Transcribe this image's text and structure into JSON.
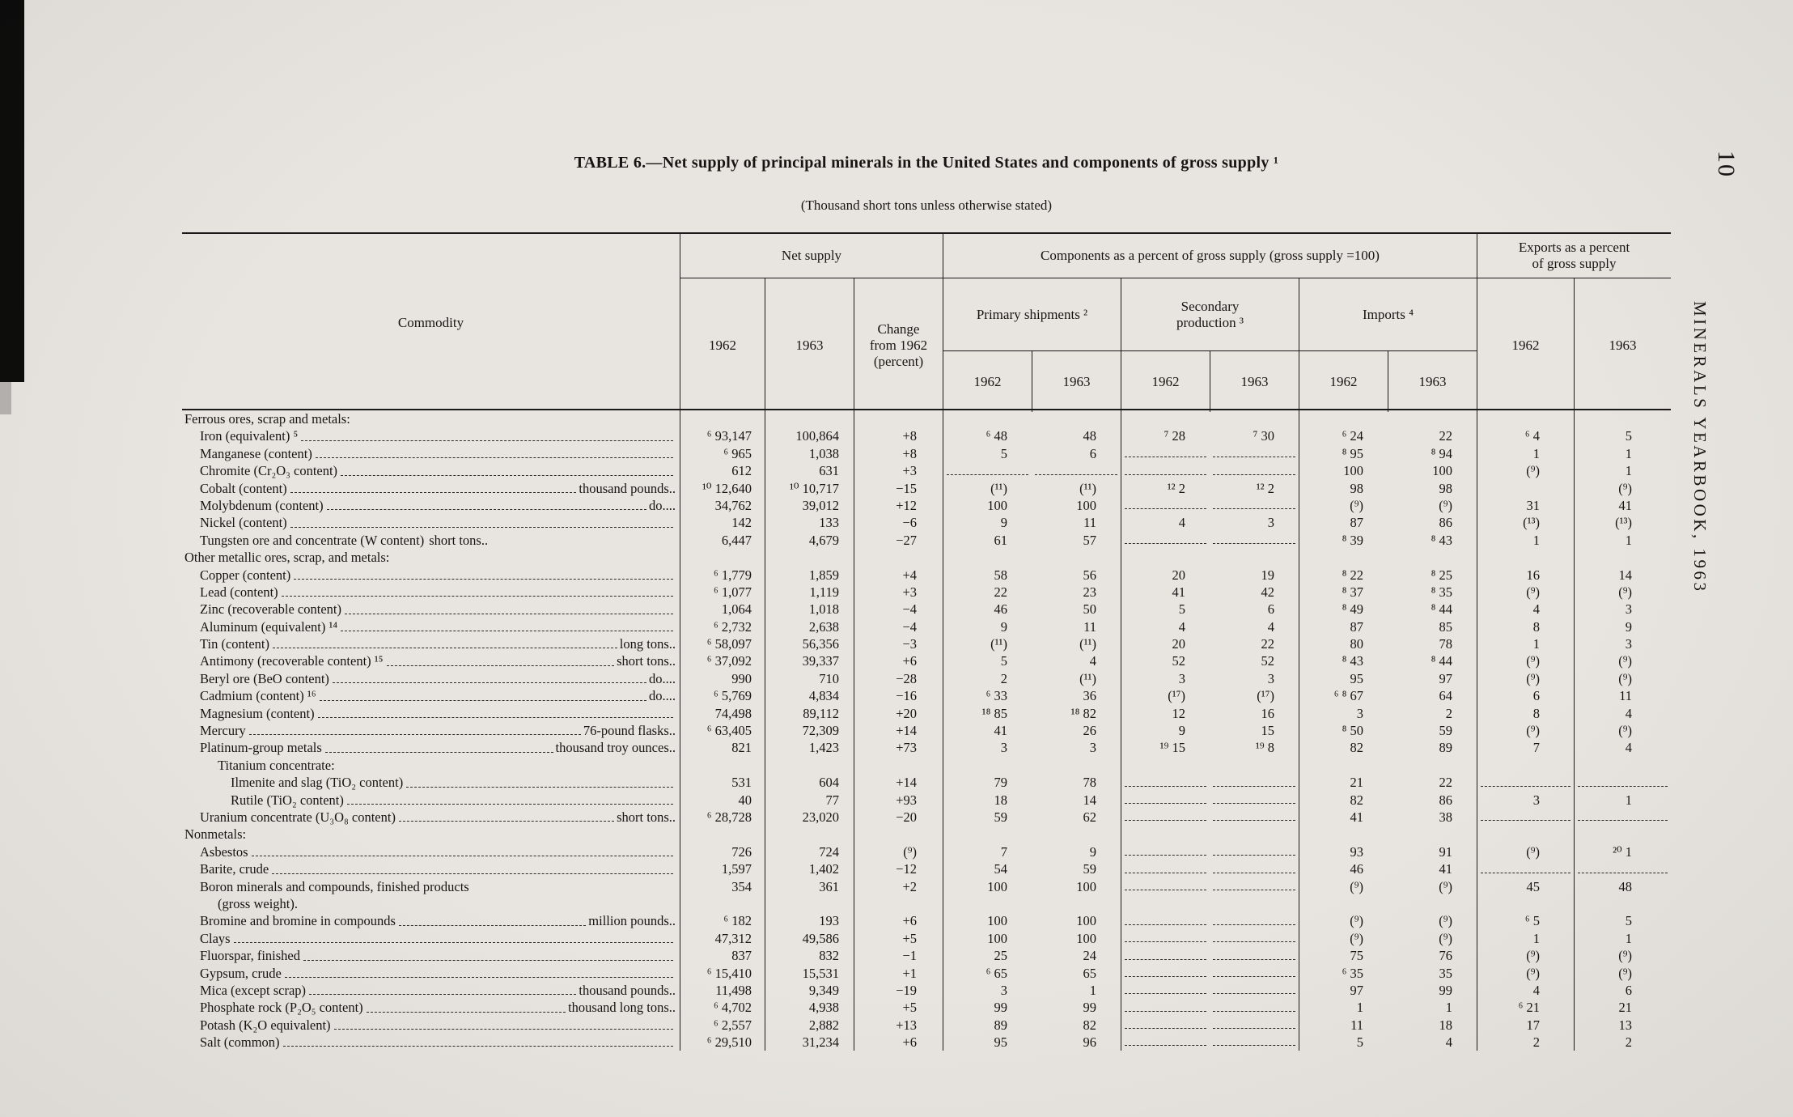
{
  "page": {
    "page_number": "10",
    "side_label": "MINERALS YEARBOOK, 1963",
    "title": "TABLE 6.—Net supply of principal minerals in the United States and components of gross supply ¹",
    "subtitle": "(Thousand short tons unless otherwise stated)"
  },
  "table": {
    "headers": {
      "commodity": "Commodity",
      "net_supply": "Net supply",
      "components": "Components as a percent of gross supply  (gross supply =100)",
      "exports": "Exports as a percent\nof gross supply",
      "primary": "Primary shipments ²",
      "secondary": "Secondary\nproduction ³",
      "imports": "Imports ⁴",
      "change": "Change\nfrom 1962\n(percent)",
      "year_1962": "1962",
      "year_1963": "1963"
    },
    "rows": [
      {
        "type": "section",
        "indent": 0,
        "name": "Ferrous ores, scrap and metals:"
      },
      {
        "type": "data",
        "indent": 1,
        "name": "Iron (equivalent) ⁵",
        "values": [
          "⁶ 93,147",
          "100,864",
          "+8",
          "⁶ 48",
          "48",
          "⁷ 28",
          "⁷ 30",
          "⁶ 24",
          "22",
          "⁶ 4",
          "5"
        ]
      },
      {
        "type": "data",
        "indent": 1,
        "name": "Manganese (content)",
        "values": [
          "⁶ 965",
          "1,038",
          "+8",
          "5",
          "6",
          "----",
          "----",
          "⁸ 95",
          "⁸ 94",
          "1",
          "1"
        ]
      },
      {
        "type": "data",
        "indent": 1,
        "name": "Chromite (Cr₂O₃ content)",
        "values": [
          "612",
          "631",
          "+3",
          "----",
          "----",
          "----",
          "----",
          "100",
          "100",
          "(⁹)",
          "1"
        ]
      },
      {
        "type": "data",
        "indent": 1,
        "name": "Cobalt (content)",
        "unit": "thousand pounds..",
        "values": [
          "¹⁰ 12,640",
          "¹⁰ 10,717",
          "−15",
          "(¹¹)",
          "(¹¹)",
          "¹² 2",
          "¹² 2",
          "98",
          "98",
          "",
          "(⁹)"
        ]
      },
      {
        "type": "data",
        "indent": 1,
        "name": "Molybdenum (content)",
        "unit": "do....",
        "values": [
          "34,762",
          "39,012",
          "+12",
          "100",
          "100",
          "----",
          "----",
          "(⁹)",
          "(⁹)",
          "31",
          "41"
        ]
      },
      {
        "type": "data",
        "indent": 1,
        "name": "Nickel (content)",
        "values": [
          "142",
          "133",
          "−6",
          "9",
          "11",
          "4",
          "3",
          "87",
          "86",
          "(¹³)",
          "(¹³)"
        ]
      },
      {
        "type": "data",
        "indent": 1,
        "name": "Tungsten ore and concentrate (W content)",
        "unit": "short tons..",
        "noleader": true,
        "values": [
          "6,447",
          "4,679",
          "−27",
          "61",
          "57",
          "----",
          "----",
          "⁸ 39",
          "⁸ 43",
          "1",
          "1"
        ]
      },
      {
        "type": "section",
        "indent": 0,
        "name": "Other metallic ores, scrap, and metals:"
      },
      {
        "type": "data",
        "indent": 1,
        "name": "Copper (content)",
        "values": [
          "⁶ 1,779",
          "1,859",
          "+4",
          "58",
          "56",
          "20",
          "19",
          "⁸ 22",
          "⁸ 25",
          "16",
          "14"
        ]
      },
      {
        "type": "data",
        "indent": 1,
        "name": "Lead (content)",
        "values": [
          "⁶ 1,077",
          "1,119",
          "+3",
          "22",
          "23",
          "41",
          "42",
          "⁸ 37",
          "⁸ 35",
          "(⁹)",
          "(⁹)"
        ]
      },
      {
        "type": "data",
        "indent": 1,
        "name": "Zinc (recoverable content)",
        "values": [
          "1,064",
          "1,018",
          "−4",
          "46",
          "50",
          "5",
          "6",
          "⁸ 49",
          "⁸ 44",
          "4",
          "3"
        ]
      },
      {
        "type": "data",
        "indent": 1,
        "name": "Aluminum (equivalent) ¹⁴",
        "values": [
          "⁶ 2,732",
          "2,638",
          "−4",
          "9",
          "11",
          "4",
          "4",
          "87",
          "85",
          "8",
          "9"
        ]
      },
      {
        "type": "data",
        "indent": 1,
        "name": "Tin (content)",
        "unit": "long tons..",
        "values": [
          "⁶ 58,097",
          "56,356",
          "−3",
          "(¹¹)",
          "(¹¹)",
          "20",
          "22",
          "80",
          "78",
          "1",
          "3"
        ]
      },
      {
        "type": "data",
        "indent": 1,
        "name": "Antimony (recoverable content) ¹⁵",
        "unit": "short tons..",
        "values": [
          "⁶ 37,092",
          "39,337",
          "+6",
          "5",
          "4",
          "52",
          "52",
          "⁸ 43",
          "⁸ 44",
          "(⁹)",
          "(⁹)"
        ]
      },
      {
        "type": "data",
        "indent": 1,
        "name": "Beryl ore (BeO content)",
        "unit": "do....",
        "values": [
          "990",
          "710",
          "−28",
          "2",
          "(¹¹)",
          "3",
          "3",
          "95",
          "97",
          "(⁹)",
          "(⁹)"
        ]
      },
      {
        "type": "data",
        "indent": 1,
        "name": "Cadmium (content) ¹⁶",
        "unit": "do....",
        "values": [
          "⁶ 5,769",
          "4,834",
          "−16",
          "⁶ 33",
          "36",
          "(¹⁷)",
          "(¹⁷)",
          "⁶ ⁸ 67",
          "64",
          "6",
          "11"
        ]
      },
      {
        "type": "data",
        "indent": 1,
        "name": "Magnesium (content)",
        "values": [
          "74,498",
          "89,112",
          "+20",
          "¹⁸ 85",
          "¹⁸ 82",
          "12",
          "16",
          "3",
          "2",
          "8",
          "4"
        ]
      },
      {
        "type": "data",
        "indent": 1,
        "name": "Mercury",
        "unit": "76-pound flasks..",
        "values": [
          "⁶ 63,405",
          "72,309",
          "+14",
          "41",
          "26",
          "9",
          "15",
          "⁸ 50",
          "59",
          "(⁹)",
          "(⁹)"
        ]
      },
      {
        "type": "data",
        "indent": 1,
        "name": "Platinum-group metals",
        "unit": "thousand troy ounces..",
        "values": [
          "821",
          "1,423",
          "+73",
          "3",
          "3",
          "¹⁹ 15",
          "¹⁹ 8",
          "82",
          "89",
          "7",
          "4"
        ]
      },
      {
        "type": "subhead",
        "indent": 2,
        "name": "Titanium concentrate:"
      },
      {
        "type": "data",
        "indent": 3,
        "name": "Ilmenite and slag (TiO₂ content)",
        "values": [
          "531",
          "604",
          "+14",
          "79",
          "78",
          "----",
          "----",
          "21",
          "22",
          "----",
          "----"
        ]
      },
      {
        "type": "data",
        "indent": 3,
        "name": "Rutile (TiO₂ content)",
        "values": [
          "40",
          "77",
          "+93",
          "18",
          "14",
          "----",
          "----",
          "82",
          "86",
          "3",
          "1"
        ]
      },
      {
        "type": "data",
        "indent": 1,
        "name": "Uranium concentrate (U₃O₈ content)",
        "unit": "short tons..",
        "values": [
          "⁶ 28,728",
          "23,020",
          "−20",
          "59",
          "62",
          "----",
          "----",
          "41",
          "38",
          "----",
          "----"
        ]
      },
      {
        "type": "section",
        "indent": 0,
        "name": "Nonmetals:"
      },
      {
        "type": "data",
        "indent": 1,
        "name": "Asbestos",
        "values": [
          "726",
          "724",
          "(⁹)",
          "7",
          "9",
          "----",
          "----",
          "93",
          "91",
          "(⁹)",
          "²⁰ 1"
        ]
      },
      {
        "type": "data",
        "indent": 1,
        "name": "Barite, crude",
        "values": [
          "1,597",
          "1,402",
          "−12",
          "54",
          "59",
          "----",
          "----",
          "46",
          "41",
          "----",
          "----"
        ]
      },
      {
        "type": "data",
        "indent": 1,
        "name": "Boron minerals and compounds, finished products",
        "noleader": true,
        "values": [
          "354",
          "361",
          "+2",
          "100",
          "100",
          "----",
          "----",
          "(⁹)",
          "(⁹)",
          "45",
          "48"
        ]
      },
      {
        "type": "cont",
        "indent": 2,
        "name": "(gross weight)."
      },
      {
        "type": "data",
        "indent": 1,
        "name": "Bromine and bromine in compounds",
        "unit": "million pounds..",
        "values": [
          "⁶ 182",
          "193",
          "+6",
          "100",
          "100",
          "----",
          "----",
          "(⁹)",
          "(⁹)",
          "⁶ 5",
          "5"
        ]
      },
      {
        "type": "data",
        "indent": 1,
        "name": "Clays",
        "values": [
          "47,312",
          "49,586",
          "+5",
          "100",
          "100",
          "----",
          "----",
          "(⁹)",
          "(⁹)",
          "1",
          "1"
        ]
      },
      {
        "type": "data",
        "indent": 1,
        "name": "Fluorspar, finished",
        "values": [
          "837",
          "832",
          "−1",
          "25",
          "24",
          "----",
          "----",
          "75",
          "76",
          "(⁹)",
          "(⁹)"
        ]
      },
      {
        "type": "data",
        "indent": 1,
        "name": "Gypsum, crude",
        "values": [
          "⁶ 15,410",
          "15,531",
          "+1",
          "⁶ 65",
          "65",
          "----",
          "----",
          "⁶ 35",
          "35",
          "(⁹)",
          "(⁹)"
        ]
      },
      {
        "type": "data",
        "indent": 1,
        "name": "Mica (except scrap)",
        "unit": "thousand pounds..",
        "values": [
          "11,498",
          "9,349",
          "−19",
          "3",
          "1",
          "----",
          "----",
          "97",
          "99",
          "4",
          "6"
        ]
      },
      {
        "type": "data",
        "indent": 1,
        "name": "Phosphate rock (P₂O₅ content)",
        "unit": "thousand long tons..",
        "values": [
          "⁶ 4,702",
          "4,938",
          "+5",
          "99",
          "99",
          "----",
          "----",
          "1",
          "1",
          "⁶ 21",
          "21"
        ]
      },
      {
        "type": "data",
        "indent": 1,
        "name": "Potash (K₂O equivalent)",
        "values": [
          "⁶ 2,557",
          "2,882",
          "+13",
          "89",
          "82",
          "----",
          "----",
          "11",
          "18",
          "17",
          "13"
        ]
      },
      {
        "type": "data",
        "indent": 1,
        "name": "Salt (common)",
        "values": [
          "⁶ 29,510",
          "31,234",
          "+6",
          "95",
          "96",
          "----",
          "----",
          "5",
          "4",
          "2",
          "2"
        ]
      }
    ]
  }
}
